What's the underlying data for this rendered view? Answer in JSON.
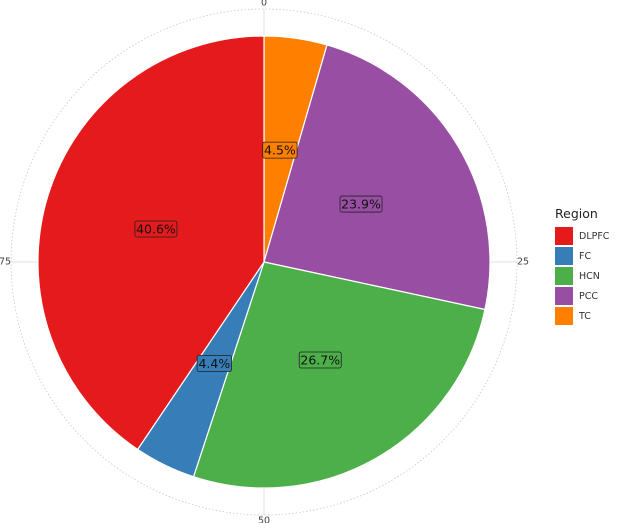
{
  "chart_data": {
    "type": "pie",
    "start_angle_deg": 0,
    "direction": "clockwise",
    "theta_ticks": [
      {
        "value": 0,
        "label": "0"
      },
      {
        "value": 25,
        "label": "25"
      },
      {
        "value": 50,
        "label": "50"
      },
      {
        "value": 75,
        "label": "75"
      }
    ],
    "theta_max": 100,
    "slices": [
      {
        "name": "TC",
        "value": 4.5,
        "label": "4.5%",
        "color": "#ff7f00"
      },
      {
        "name": "PCC",
        "value": 23.9,
        "label": "23.9%",
        "color": "#984ea3"
      },
      {
        "name": "HCN",
        "value": 26.7,
        "label": "26.7%",
        "color": "#4daf4a"
      },
      {
        "name": "FC",
        "value": 4.4,
        "label": "4.4%",
        "color": "#377eb8"
      },
      {
        "name": "DLPFC",
        "value": 40.6,
        "label": "40.6%",
        "color": "#e41a1c"
      }
    ],
    "legend": {
      "title": "Region",
      "position": "right",
      "items": [
        {
          "name": "DLPFC",
          "color": "#e41a1c"
        },
        {
          "name": "FC",
          "color": "#377eb8"
        },
        {
          "name": "HCN",
          "color": "#4daf4a"
        },
        {
          "name": "PCC",
          "color": "#984ea3"
        },
        {
          "name": "TC",
          "color": "#ff7f00"
        }
      ]
    },
    "grid": true
  }
}
